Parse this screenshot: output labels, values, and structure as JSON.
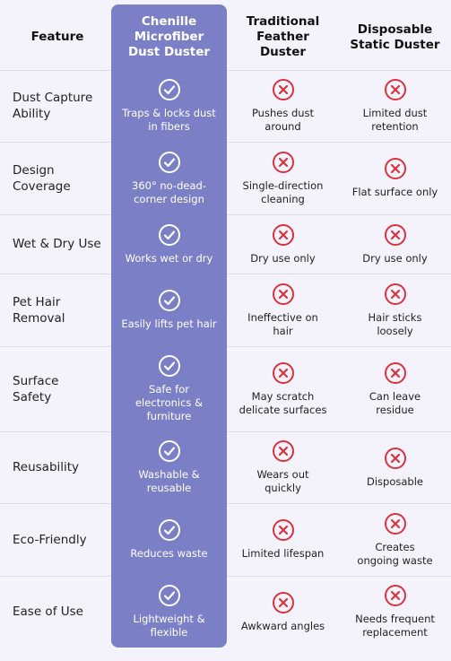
{
  "table": {
    "header": [
      [
        "Feature"
      ],
      [
        "Chenille",
        "Microfiber",
        "Dust Duster"
      ],
      [
        "Traditional",
        "Feather",
        "Duster"
      ],
      [
        "Disposable",
        "Static Duster"
      ]
    ],
    "rows": [
      [
        [
          "Dust Capture",
          "Ability"
        ],
        [
          "Traps & locks dust",
          "in fibers"
        ],
        [
          "Pushes dust",
          "around"
        ],
        [
          "Limited dust",
          "retention"
        ]
      ],
      [
        [
          "Design",
          "Coverage"
        ],
        [
          "360° no-dead-",
          "corner design"
        ],
        [
          "Single-direction",
          "cleaning"
        ],
        [
          "Flat surface only"
        ]
      ],
      [
        [
          "Wet & Dry Use"
        ],
        [
          "Works wet or dry"
        ],
        [
          "Dry use only"
        ],
        [
          "Dry use only"
        ]
      ],
      [
        [
          "Pet Hair",
          "Removal"
        ],
        [
          "Easily lifts pet hair"
        ],
        [
          "Ineffective on",
          "hair"
        ],
        [
          "Hair sticks",
          "loosely"
        ]
      ],
      [
        [
          "Surface",
          "Safety"
        ],
        [
          "Safe for",
          "electronics &",
          "furniture"
        ],
        [
          "May scratch",
          "delicate surfaces"
        ],
        [
          "Can leave",
          "residue"
        ]
      ],
      [
        [
          "Reusability"
        ],
        [
          "Washable &",
          "reusable"
        ],
        [
          "Wears out",
          "quickly"
        ],
        [
          "Disposable"
        ]
      ],
      [
        [
          "Eco-Friendly"
        ],
        [
          "Reduces waste"
        ],
        [
          "Limited lifespan"
        ],
        [
          "Creates",
          "ongoing waste"
        ]
      ],
      [
        [
          "Ease of Use"
        ],
        [
          "Lightweight &",
          "flexible"
        ],
        [
          "Awkward angles"
        ],
        [
          "Needs frequent",
          "replacement"
        ]
      ]
    ]
  }
}
